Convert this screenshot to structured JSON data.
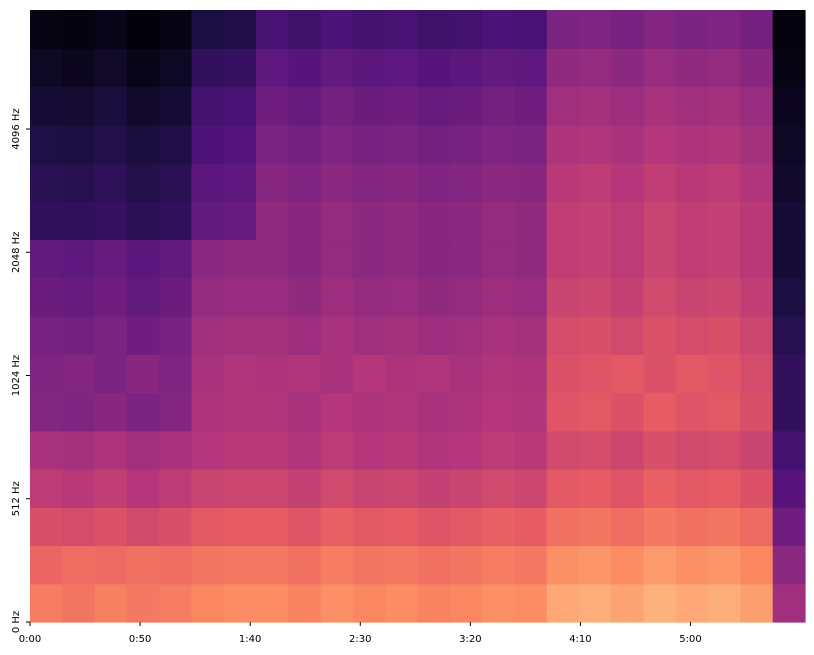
{
  "chart_data": {
    "type": "heatmap",
    "colormap": "magma",
    "zlim": [
      0,
      100
    ],
    "xlim": [
      0,
      352
    ],
    "xticks": [
      {
        "value": 0,
        "label": "0:00"
      },
      {
        "value": 50,
        "label": "0:50"
      },
      {
        "value": 100,
        "label": "1:40"
      },
      {
        "value": 150,
        "label": "2:30"
      },
      {
        "value": 200,
        "label": "3:20"
      },
      {
        "value": 250,
        "label": "4:10"
      },
      {
        "value": 300,
        "label": "5:00"
      }
    ],
    "ylim": [
      0,
      8000
    ],
    "yscale": "symlog",
    "linthresh": 512,
    "yticks": [
      {
        "value": 0,
        "label": "0 Hz"
      },
      {
        "value": 512,
        "label": "512 Hz"
      },
      {
        "value": 1024,
        "label": "1024 Hz"
      },
      {
        "value": 2048,
        "label": "2048 Hz"
      },
      {
        "value": 4096,
        "label": "4096 Hz"
      }
    ],
    "z": [
      [
        72,
        70,
        73,
        71,
        72,
        75,
        76,
        76,
        74,
        77,
        75,
        76,
        74,
        75,
        77,
        76,
        82,
        83,
        81,
        84,
        82,
        83,
        80,
        45
      ],
      [
        66,
        68,
        67,
        69,
        68,
        70,
        71,
        71,
        69,
        72,
        70,
        71,
        69,
        70,
        72,
        71,
        77,
        78,
        76,
        79,
        77,
        78,
        75,
        40
      ],
      [
        59,
        58,
        60,
        57,
        59,
        62,
        63,
        63,
        61,
        64,
        62,
        63,
        61,
        62,
        64,
        63,
        69,
        70,
        68,
        71,
        69,
        70,
        67,
        33
      ],
      [
        52,
        51,
        53,
        50,
        52,
        55,
        56,
        56,
        54,
        57,
        55,
        56,
        54,
        55,
        57,
        56,
        62,
        63,
        61,
        64,
        62,
        63,
        60,
        27
      ],
      [
        47,
        46,
        48,
        45,
        47,
        50,
        51,
        51,
        49,
        52,
        50,
        51,
        49,
        50,
        52,
        51,
        57,
        58,
        56,
        59,
        57,
        58,
        55,
        22
      ],
      [
        38,
        37,
        39,
        36,
        38,
        48,
        49,
        49,
        47,
        50,
        48,
        49,
        47,
        48,
        50,
        49,
        61,
        62,
        60,
        63,
        61,
        62,
        59,
        18
      ],
      [
        37,
        38,
        36,
        39,
        37,
        47,
        49,
        48,
        49,
        47,
        50,
        48,
        49,
        47,
        49,
        48,
        60,
        61,
        62,
        60,
        62,
        61,
        58,
        18
      ],
      [
        35,
        34,
        36,
        33,
        35,
        45,
        46,
        46,
        44,
        47,
        45,
        46,
        44,
        45,
        47,
        46,
        58,
        59,
        57,
        60,
        58,
        59,
        56,
        15
      ],
      [
        32,
        31,
        33,
        30,
        32,
        42,
        43,
        43,
        41,
        44,
        42,
        43,
        41,
        42,
        44,
        43,
        55,
        56,
        54,
        57,
        55,
        56,
        53,
        12
      ],
      [
        30,
        29,
        31,
        28,
        30,
        40,
        41,
        41,
        39,
        42,
        40,
        41,
        39,
        40,
        42,
        41,
        53,
        54,
        52,
        55,
        53,
        54,
        51,
        10
      ],
      [
        18,
        17,
        19,
        16,
        18,
        30,
        31,
        41,
        39,
        42,
        40,
        41,
        39,
        40,
        42,
        41,
        53,
        54,
        52,
        55,
        53,
        54,
        51,
        10
      ],
      [
        16,
        15,
        17,
        14,
        16,
        28,
        29,
        39,
        37,
        40,
        38,
        39,
        37,
        38,
        40,
        39,
        51,
        52,
        50,
        53,
        51,
        52,
        49,
        8
      ],
      [
        13,
        12,
        14,
        11,
        13,
        25,
        26,
        36,
        34,
        37,
        35,
        36,
        34,
        35,
        37,
        36,
        48,
        49,
        47,
        50,
        48,
        49,
        46,
        6
      ],
      [
        10,
        9,
        11,
        8,
        10,
        22,
        23,
        33,
        31,
        34,
        32,
        33,
        31,
        32,
        34,
        33,
        45,
        46,
        44,
        47,
        45,
        46,
        43,
        5
      ],
      [
        6,
        5,
        7,
        4,
        6,
        18,
        19,
        29,
        27,
        30,
        28,
        29,
        27,
        28,
        30,
        29,
        41,
        42,
        40,
        43,
        41,
        42,
        39,
        3
      ],
      [
        3,
        2,
        4,
        1,
        3,
        12,
        13,
        23,
        21,
        24,
        22,
        23,
        21,
        22,
        24,
        23,
        36,
        37,
        35,
        38,
        36,
        37,
        34,
        2
      ]
    ]
  }
}
